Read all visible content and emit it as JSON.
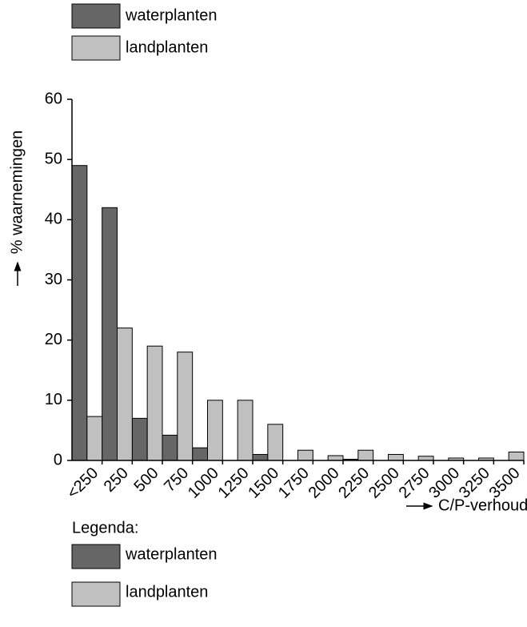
{
  "chart_data": {
    "type": "bar",
    "ylabel": "% waarnemingen",
    "xlabel": "C/P-verhouding in biomassa",
    "legend_title": "Legenda:",
    "categories": [
      "<250",
      "250",
      "500",
      "750",
      "1000",
      "1250",
      "1500",
      "1750",
      "2000",
      "2250",
      "2500",
      "2750",
      "3000",
      "3250",
      "3500"
    ],
    "series": [
      {
        "name": "waterplanten",
        "color": "#666666",
        "values": [
          49,
          42,
          7,
          4.2,
          2.1,
          0,
          1,
          0,
          0,
          0.2,
          0,
          0,
          0,
          0,
          0
        ]
      },
      {
        "name": "landplanten",
        "color": "#c0c0c0",
        "values": [
          7.3,
          22,
          19,
          18,
          10,
          10,
          6,
          1.7,
          0.8,
          1.7,
          1,
          0.7,
          0.4,
          0.4,
          1.4
        ]
      }
    ],
    "ylim": [
      0,
      60
    ],
    "yticks": [
      0,
      10,
      20,
      30,
      40,
      50,
      60
    ]
  }
}
